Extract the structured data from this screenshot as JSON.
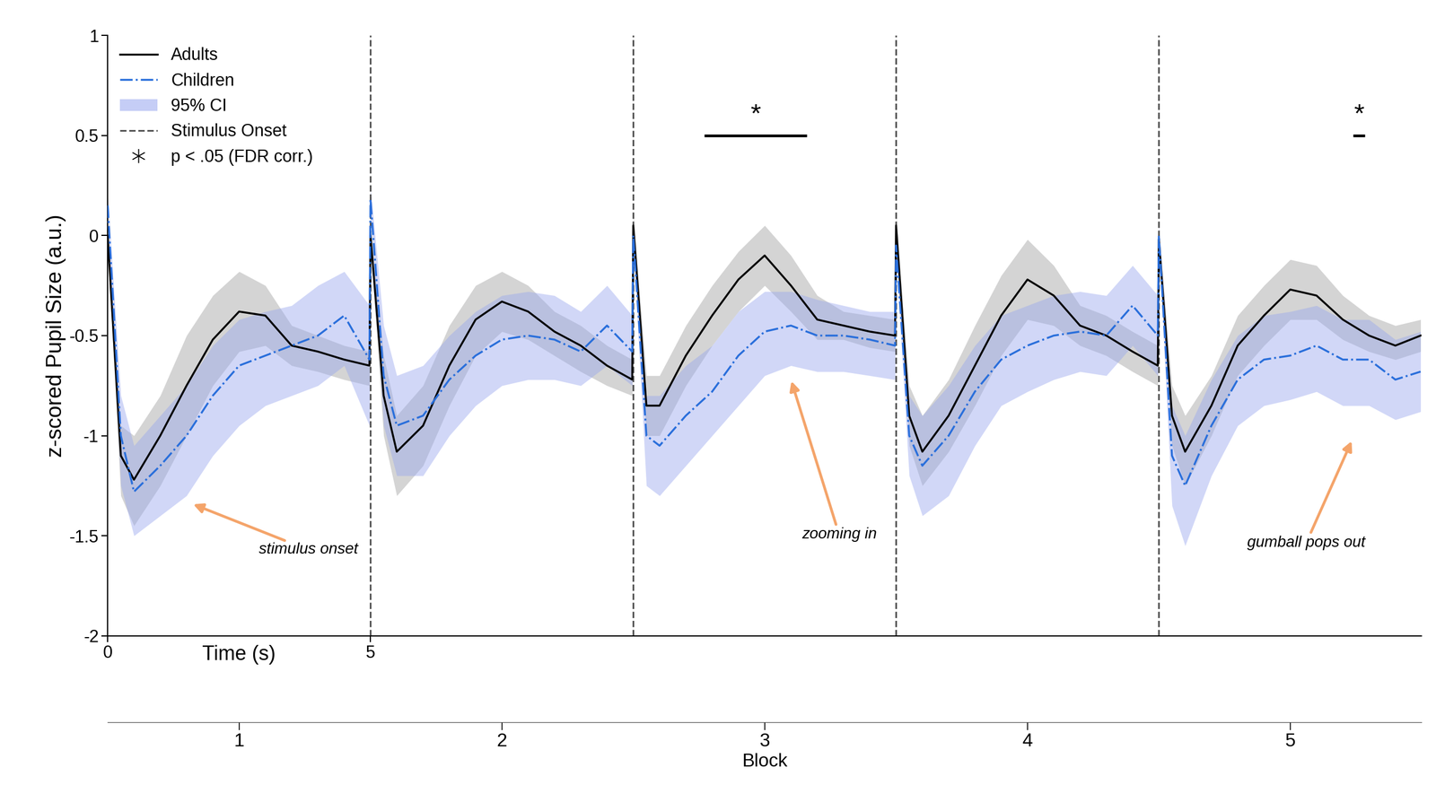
{
  "chart_data": {
    "type": "line",
    "y_label": "z-scored Pupil Size (a.u.)",
    "x_label": "Time (s)",
    "xlim": [
      0,
      25
    ],
    "xticks": [
      0,
      5
    ],
    "ylim": [
      -2,
      1
    ],
    "yticks": [
      -2,
      -1.5,
      -1,
      -0.5,
      0,
      0.5,
      1
    ],
    "legend": "upper left",
    "x": [
      0,
      0.25,
      0.5,
      1,
      1.5,
      2,
      2.5,
      3,
      3.5,
      4,
      4.5,
      4.98,
      5,
      5.25,
      5.5,
      6,
      6.5,
      7,
      7.5,
      8,
      8.5,
      9,
      9.5,
      9.98,
      10,
      10.25,
      10.5,
      11,
      11.5,
      12,
      12.5,
      13,
      13.5,
      14,
      14.5,
      14.98,
      15,
      15.25,
      15.5,
      16,
      16.5,
      17,
      17.5,
      18,
      18.5,
      19,
      19.5,
      19.98,
      20,
      20.25,
      20.5,
      21,
      21.5,
      22,
      22.5,
      23,
      23.5,
      24,
      24.5,
      24.98
    ],
    "series": [
      {
        "name": "Adults",
        "color": "#000000",
        "line_style": "solid",
        "values": [
          0.0,
          -1.1,
          -1.22,
          -1.0,
          -0.75,
          -0.52,
          -0.38,
          -0.4,
          -0.55,
          -0.58,
          -0.62,
          -0.65,
          0.0,
          -0.8,
          -1.08,
          -0.95,
          -0.65,
          -0.42,
          -0.33,
          -0.38,
          -0.48,
          -0.55,
          -0.65,
          -0.72,
          0.05,
          -0.85,
          -0.85,
          -0.6,
          -0.4,
          -0.22,
          -0.1,
          -0.25,
          -0.42,
          -0.45,
          -0.48,
          -0.5,
          0.05,
          -0.9,
          -1.08,
          -0.9,
          -0.65,
          -0.4,
          -0.22,
          -0.3,
          -0.45,
          -0.5,
          -0.58,
          -0.65,
          -0.02,
          -0.9,
          -1.08,
          -0.85,
          -0.55,
          -0.4,
          -0.27,
          -0.3,
          -0.42,
          -0.5,
          -0.55,
          -0.5
        ],
        "ci_lower": [
          -0.05,
          -1.3,
          -1.45,
          -1.25,
          -1.0,
          -0.75,
          -0.58,
          -0.55,
          -0.65,
          -0.68,
          -0.72,
          -0.75,
          -0.05,
          -1.0,
          -1.3,
          -1.15,
          -0.85,
          -0.6,
          -0.48,
          -0.52,
          -0.6,
          -0.68,
          -0.75,
          -0.8,
          0.0,
          -1.0,
          -1.0,
          -0.75,
          -0.55,
          -0.38,
          -0.25,
          -0.38,
          -0.52,
          -0.52,
          -0.56,
          -0.58,
          0.0,
          -1.05,
          -1.25,
          -1.08,
          -0.85,
          -0.6,
          -0.42,
          -0.45,
          -0.55,
          -0.6,
          -0.68,
          -0.75,
          -0.08,
          -1.05,
          -1.25,
          -1.0,
          -0.7,
          -0.55,
          -0.42,
          -0.42,
          -0.52,
          -0.58,
          -0.62,
          -0.58
        ],
        "ci_upper": [
          0.05,
          -0.95,
          -1.0,
          -0.8,
          -0.5,
          -0.3,
          -0.18,
          -0.25,
          -0.45,
          -0.5,
          -0.55,
          -0.58,
          0.05,
          -0.6,
          -0.9,
          -0.75,
          -0.45,
          -0.25,
          -0.18,
          -0.25,
          -0.38,
          -0.45,
          -0.55,
          -0.62,
          0.1,
          -0.7,
          -0.7,
          -0.45,
          -0.25,
          -0.08,
          0.05,
          -0.1,
          -0.3,
          -0.38,
          -0.4,
          -0.42,
          0.1,
          -0.75,
          -0.9,
          -0.72,
          -0.45,
          -0.2,
          -0.02,
          -0.15,
          -0.35,
          -0.4,
          -0.48,
          -0.55,
          0.04,
          -0.75,
          -0.9,
          -0.7,
          -0.4,
          -0.25,
          -0.12,
          -0.15,
          -0.3,
          -0.4,
          -0.45,
          -0.42
        ]
      },
      {
        "name": "Children",
        "color": "#2a6fdb",
        "line_style": "dashdot",
        "values": [
          0.15,
          -1.0,
          -1.28,
          -1.15,
          -1.0,
          -0.8,
          -0.65,
          -0.6,
          -0.55,
          -0.5,
          -0.4,
          -0.62,
          0.18,
          -0.7,
          -0.95,
          -0.9,
          -0.72,
          -0.6,
          -0.52,
          -0.5,
          -0.52,
          -0.58,
          -0.45,
          -0.58,
          0.0,
          -1.0,
          -1.05,
          -0.9,
          -0.78,
          -0.6,
          -0.48,
          -0.45,
          -0.5,
          -0.5,
          -0.52,
          -0.55,
          -0.05,
          -1.0,
          -1.15,
          -1.0,
          -0.78,
          -0.62,
          -0.55,
          -0.5,
          -0.48,
          -0.5,
          -0.35,
          -0.5,
          0.0,
          -1.1,
          -1.25,
          -0.95,
          -0.72,
          -0.62,
          -0.6,
          -0.55,
          -0.62,
          -0.62,
          -0.72,
          -0.68
        ],
        "ci_lower": [
          0.1,
          -1.25,
          -1.5,
          -1.4,
          -1.3,
          -1.1,
          -0.95,
          -0.85,
          -0.8,
          -0.75,
          -0.65,
          -0.95,
          0.12,
          -0.95,
          -1.2,
          -1.2,
          -1.0,
          -0.85,
          -0.75,
          -0.72,
          -0.72,
          -0.75,
          -0.65,
          -0.75,
          -0.05,
          -1.25,
          -1.3,
          -1.15,
          -1.0,
          -0.85,
          -0.7,
          -0.65,
          -0.68,
          -0.68,
          -0.7,
          -0.72,
          -0.1,
          -1.2,
          -1.4,
          -1.3,
          -1.05,
          -0.85,
          -0.78,
          -0.72,
          -0.68,
          -0.7,
          -0.55,
          -0.7,
          -0.05,
          -1.35,
          -1.55,
          -1.2,
          -0.95,
          -0.85,
          -0.82,
          -0.78,
          -0.85,
          -0.85,
          -0.92,
          -0.88
        ],
        "ci_upper": [
          0.2,
          -0.8,
          -1.05,
          -0.9,
          -0.75,
          -0.55,
          -0.42,
          -0.38,
          -0.35,
          -0.25,
          -0.18,
          -0.35,
          0.24,
          -0.45,
          -0.7,
          -0.65,
          -0.5,
          -0.38,
          -0.3,
          -0.28,
          -0.3,
          -0.38,
          -0.25,
          -0.4,
          0.05,
          -0.8,
          -0.8,
          -0.65,
          -0.55,
          -0.38,
          -0.28,
          -0.28,
          -0.32,
          -0.35,
          -0.38,
          -0.38,
          0.0,
          -0.8,
          -0.9,
          -0.75,
          -0.55,
          -0.4,
          -0.35,
          -0.3,
          -0.28,
          -0.3,
          -0.15,
          -0.3,
          0.05,
          -0.85,
          -1.0,
          -0.72,
          -0.5,
          -0.4,
          -0.38,
          -0.35,
          -0.42,
          -0.42,
          -0.52,
          -0.48
        ]
      }
    ],
    "ci_label": "95% CI",
    "onset_label": "Stimulus Onset",
    "onsets": [
      5,
      10,
      15,
      20
    ],
    "significance_label": "p < .05 (FDR corr.)",
    "significance": [
      {
        "x_start": 11.35,
        "x_end": 13.3,
        "y": 0.5,
        "label": "*"
      },
      {
        "x_start": 23.7,
        "x_end": 23.92,
        "y": 0.5,
        "label": "*"
      }
    ],
    "annotations": [
      {
        "text": "stimulus onset",
        "x": 1.6,
        "y": -1.34
      },
      {
        "text": "zooming in",
        "x": 13.0,
        "y": -0.72
      },
      {
        "text": "gumball pops out",
        "x": 23.68,
        "y": -1.02
      }
    ],
    "block_label": "Block",
    "block_ticks": [
      {
        "value": 2.5,
        "label": "1"
      },
      {
        "value": 7.5,
        "label": "2"
      },
      {
        "value": 12.5,
        "label": "3"
      },
      {
        "value": 17.5,
        "label": "4"
      },
      {
        "value": 22.5,
        "label": "5"
      }
    ]
  }
}
